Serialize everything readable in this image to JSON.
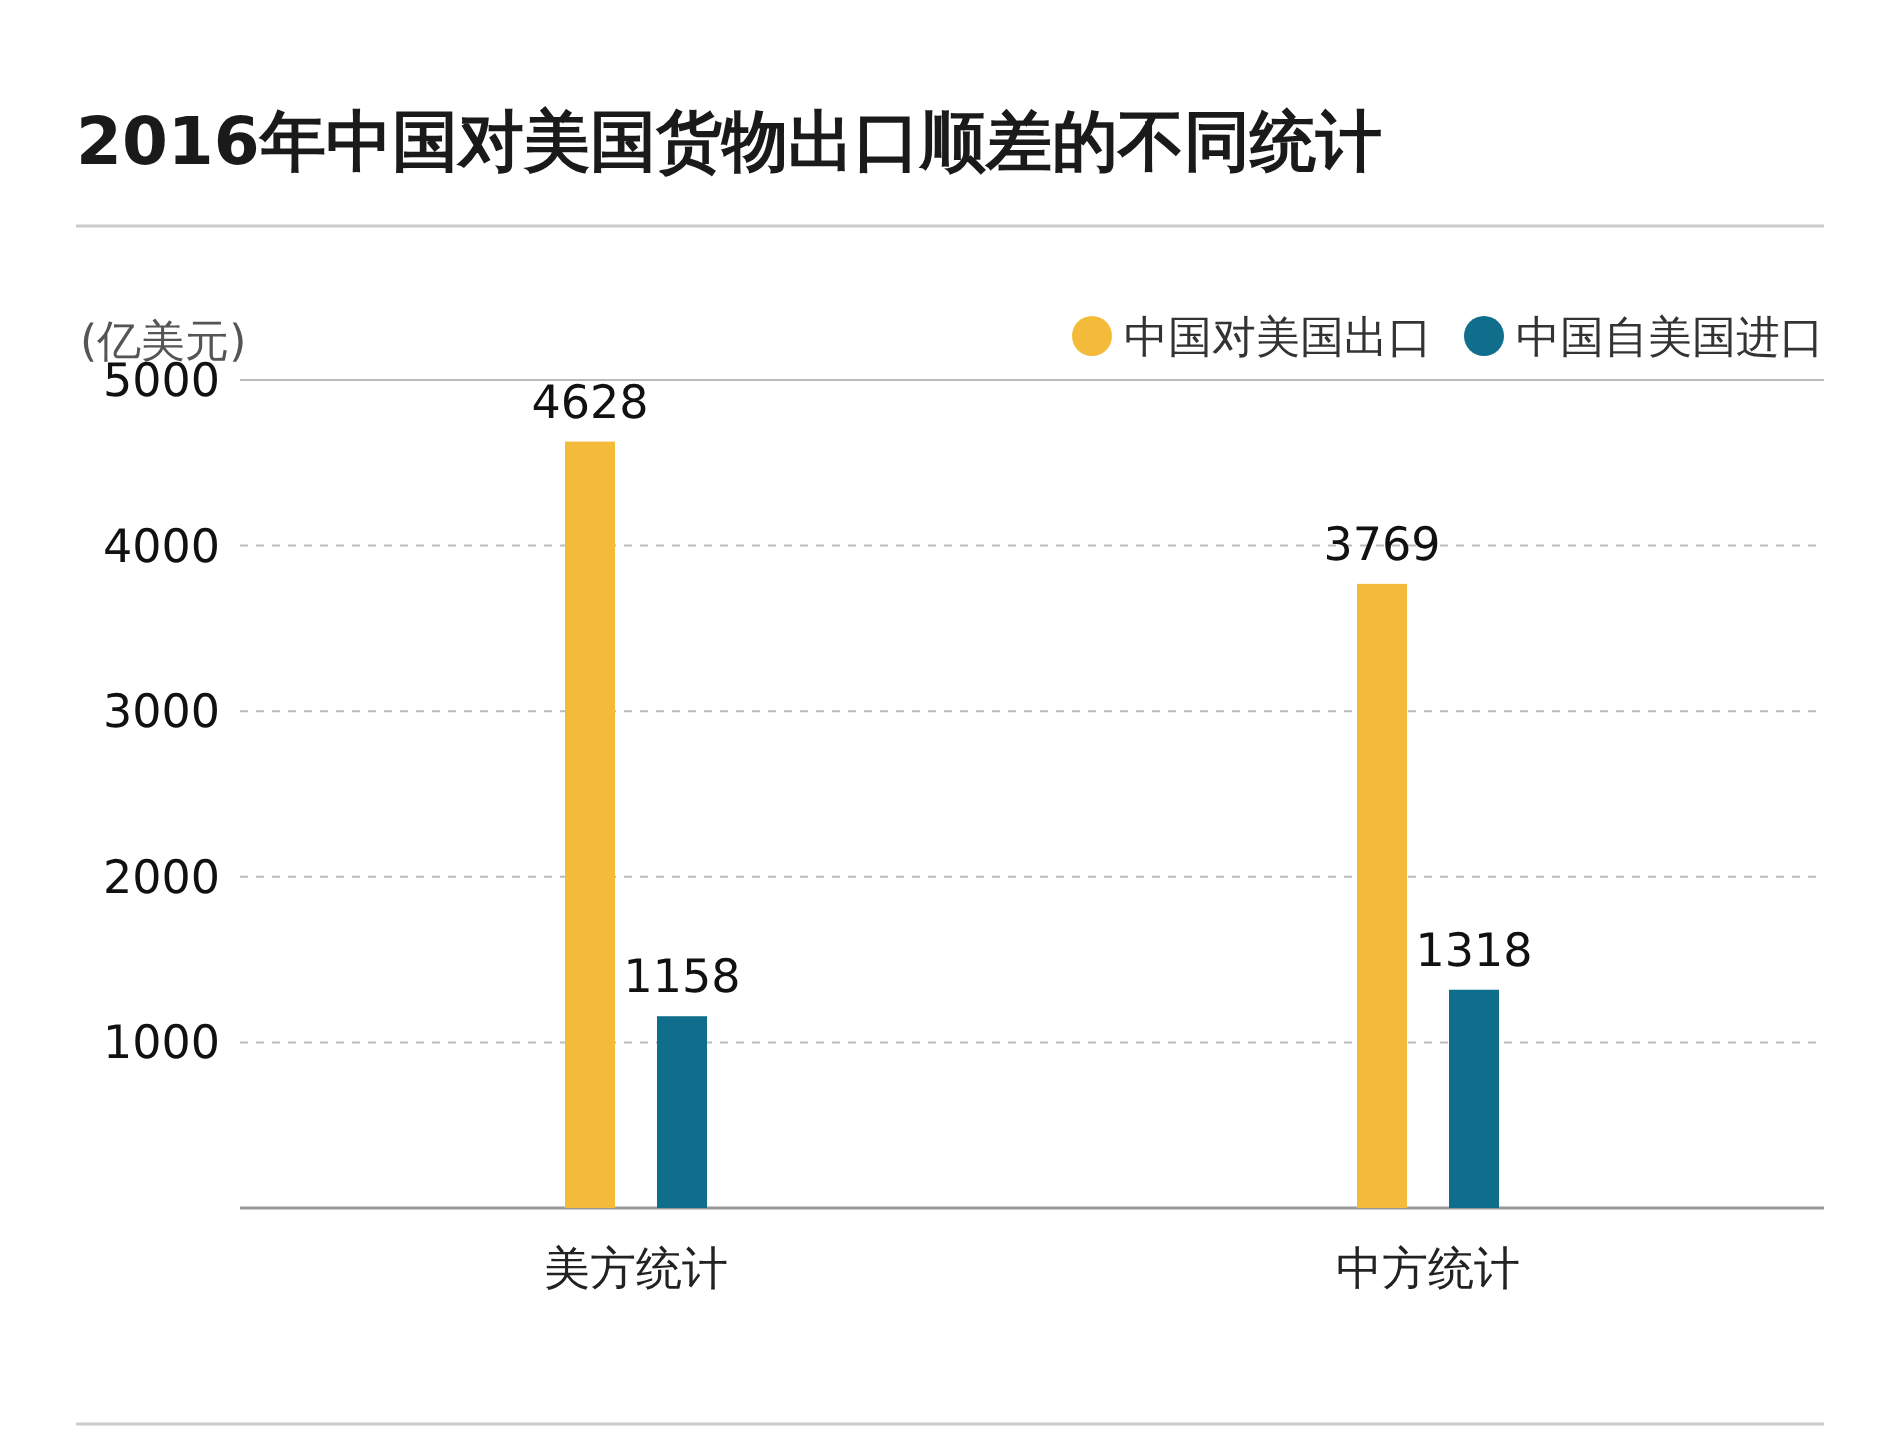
{
  "chart_data": {
    "type": "bar",
    "title": "2016年中国对美国货物出口顺差的不同统计",
    "ylabel": "(亿美元)",
    "categories": [
      "美方统计",
      "中方统计"
    ],
    "series": [
      {
        "name": "中国对美国出口",
        "color": "#f4bb3a",
        "values": [
          4628,
          3769
        ]
      },
      {
        "name": "中国自美国进口",
        "color": "#0e6e8c",
        "values": [
          1158,
          1318
        ]
      }
    ],
    "ylim": [
      0,
      5000
    ],
    "yticks": [
      1000,
      2000,
      3000,
      4000,
      5000
    ],
    "grid": "y",
    "legend": "top right",
    "data_labels": true
  }
}
